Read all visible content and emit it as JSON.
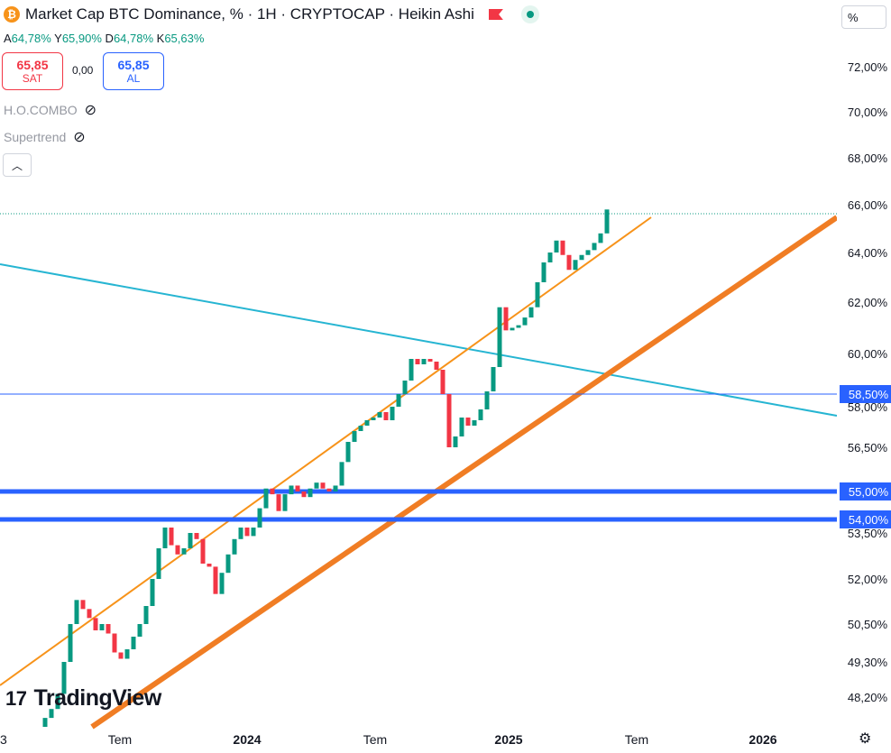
{
  "header": {
    "title": "Market Cap BTC Dominance, % · 1H · CRYPTOCAP · Heikin Ashi",
    "coin_symbol": "₿",
    "ohlc": [
      {
        "label": "A",
        "value": "64,78%"
      },
      {
        "label": "Y",
        "value": "65,90%"
      },
      {
        "label": "D",
        "value": "64,78%"
      },
      {
        "label": "K",
        "value": "65,63%"
      }
    ],
    "sell_price": "65,85",
    "sell_label": "SAT",
    "spread": "0,00",
    "buy_price": "65,85",
    "buy_label": "AL",
    "indicators": [
      "H.O.COMBO",
      "Supertrend"
    ],
    "unit_button": "%"
  },
  "branding": {
    "logo_text": "TradingView"
  },
  "colors": {
    "up": "#089981",
    "down": "#f23645",
    "channel": "#f7931a",
    "cyan": "#26b5d2",
    "level": "#2962ff"
  },
  "chart_data": {
    "type": "candlestick",
    "title": "Market Cap BTC Dominance, %",
    "ylim": [
      47.6,
      74.0
    ],
    "y_ticks": [
      72.0,
      70.0,
      68.0,
      66.0,
      64.0,
      62.0,
      60.0,
      58.0,
      56.5,
      55.0,
      53.5,
      52.0,
      50.5,
      49.3,
      48.2
    ],
    "y_tick_labels": [
      "72,00%",
      "70,00%",
      "68,00%",
      "66,00%",
      "64,00%",
      "62,00%",
      "60,00%",
      "58,00%",
      "56,50%",
      "55,00%",
      "53,50%",
      "52,00%",
      "50,50%",
      "49,30%",
      "48,20%"
    ],
    "x_ticks": [
      "3",
      "Tem",
      "2024",
      "Tem",
      "2025",
      "Tem",
      "2026"
    ],
    "price_labels": [
      {
        "text": "58,50%",
        "value": 58.5
      },
      {
        "text": "55,00%",
        "value": 55.0
      },
      {
        "text": "54,00%",
        "value": 54.0
      }
    ],
    "last_price_line": 65.8,
    "candles": [
      {
        "o": 47.2,
        "c": 47.5
      },
      {
        "o": 47.5,
        "c": 47.8
      },
      {
        "o": 47.8,
        "c": 48.3
      },
      {
        "o": 48.3,
        "c": 49.3
      },
      {
        "o": 49.3,
        "c": 50.5
      },
      {
        "o": 50.5,
        "c": 51.3
      },
      {
        "o": 51.3,
        "c": 51.0
      },
      {
        "o": 51.0,
        "c": 50.7
      },
      {
        "o": 50.7,
        "c": 50.3
      },
      {
        "o": 50.3,
        "c": 50.5
      },
      {
        "o": 50.5,
        "c": 50.2
      },
      {
        "o": 50.2,
        "c": 49.6
      },
      {
        "o": 49.6,
        "c": 49.4
      },
      {
        "o": 49.4,
        "c": 49.7
      },
      {
        "o": 49.7,
        "c": 50.1
      },
      {
        "o": 50.1,
        "c": 50.5
      },
      {
        "o": 50.5,
        "c": 51.1
      },
      {
        "o": 51.1,
        "c": 52.0
      },
      {
        "o": 52.0,
        "c": 53.0
      },
      {
        "o": 53.0,
        "c": 53.7
      },
      {
        "o": 53.7,
        "c": 53.1
      },
      {
        "o": 53.1,
        "c": 52.8
      },
      {
        "o": 52.8,
        "c": 53.0
      },
      {
        "o": 53.0,
        "c": 53.5
      },
      {
        "o": 53.5,
        "c": 53.3
      },
      {
        "o": 53.3,
        "c": 52.5
      },
      {
        "o": 52.5,
        "c": 52.4
      },
      {
        "o": 52.4,
        "c": 51.5
      },
      {
        "o": 51.5,
        "c": 52.2
      },
      {
        "o": 52.2,
        "c": 52.8
      },
      {
        "o": 52.8,
        "c": 53.3
      },
      {
        "o": 53.3,
        "c": 53.7
      },
      {
        "o": 53.7,
        "c": 53.4
      },
      {
        "o": 53.4,
        "c": 53.7
      },
      {
        "o": 53.7,
        "c": 54.4
      },
      {
        "o": 54.4,
        "c": 55.1
      },
      {
        "o": 55.1,
        "c": 54.9
      },
      {
        "o": 54.9,
        "c": 54.3
      },
      {
        "o": 54.3,
        "c": 54.9
      },
      {
        "o": 54.9,
        "c": 55.2
      },
      {
        "o": 55.2,
        "c": 55.0
      },
      {
        "o": 55.0,
        "c": 54.8
      },
      {
        "o": 54.8,
        "c": 55.1
      },
      {
        "o": 55.1,
        "c": 55.3
      },
      {
        "o": 55.3,
        "c": 55.1
      },
      {
        "o": 55.1,
        "c": 55.0
      },
      {
        "o": 55.0,
        "c": 55.2
      },
      {
        "o": 55.2,
        "c": 56.0
      },
      {
        "o": 56.0,
        "c": 56.7
      },
      {
        "o": 56.7,
        "c": 57.1
      },
      {
        "o": 57.1,
        "c": 57.3
      },
      {
        "o": 57.3,
        "c": 57.5
      },
      {
        "o": 57.5,
        "c": 57.6
      },
      {
        "o": 57.6,
        "c": 57.8
      },
      {
        "o": 57.8,
        "c": 57.5
      },
      {
        "o": 57.5,
        "c": 58.0
      },
      {
        "o": 58.0,
        "c": 58.5
      },
      {
        "o": 58.5,
        "c": 59.0
      },
      {
        "o": 59.0,
        "c": 59.8
      },
      {
        "o": 59.8,
        "c": 59.6
      },
      {
        "o": 59.6,
        "c": 59.8
      },
      {
        "o": 59.8,
        "c": 59.7
      },
      {
        "o": 59.7,
        "c": 59.4
      },
      {
        "o": 59.4,
        "c": 58.5
      },
      {
        "o": 58.5,
        "c": 56.5
      },
      {
        "o": 56.5,
        "c": 56.9
      },
      {
        "o": 56.9,
        "c": 57.6
      },
      {
        "o": 57.6,
        "c": 57.3
      },
      {
        "o": 57.3,
        "c": 57.5
      },
      {
        "o": 57.5,
        "c": 57.9
      },
      {
        "o": 57.9,
        "c": 58.6
      },
      {
        "o": 58.6,
        "c": 59.5
      },
      {
        "o": 59.5,
        "c": 61.8
      },
      {
        "o": 61.8,
        "c": 60.9
      },
      {
        "o": 60.9,
        "c": 61.0
      },
      {
        "o": 61.0,
        "c": 61.1
      },
      {
        "o": 61.1,
        "c": 61.4
      },
      {
        "o": 61.4,
        "c": 61.8
      },
      {
        "o": 61.8,
        "c": 62.8
      },
      {
        "o": 62.8,
        "c": 63.6
      },
      {
        "o": 63.6,
        "c": 64.0
      },
      {
        "o": 64.0,
        "c": 64.5
      },
      {
        "o": 64.5,
        "c": 63.9
      },
      {
        "o": 63.9,
        "c": 63.3
      },
      {
        "o": 63.3,
        "c": 63.7
      },
      {
        "o": 63.7,
        "c": 63.9
      },
      {
        "o": 63.9,
        "c": 64.1
      },
      {
        "o": 64.1,
        "c": 64.4
      },
      {
        "o": 64.4,
        "c": 64.8
      },
      {
        "o": 64.8,
        "c": 65.8
      }
    ]
  }
}
